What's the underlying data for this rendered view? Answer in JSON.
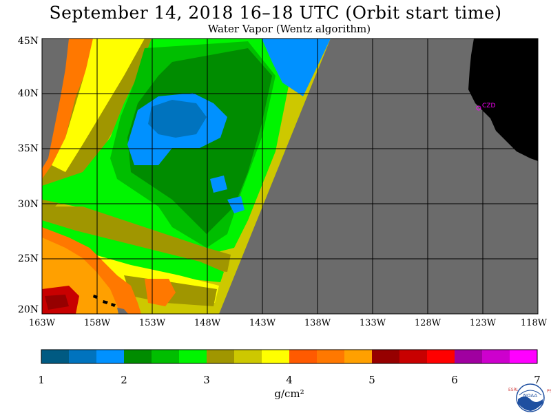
{
  "title": "September 14, 2018  16–18 UTC  (Orbit start time)",
  "subtitle": "Water Vapor (Wentz algorithm)",
  "map": {
    "lat_labels": [
      "45N",
      "40N",
      "35N",
      "30N",
      "25N",
      "20N"
    ],
    "lon_labels": [
      "163W",
      "158W",
      "153W",
      "148W",
      "143W",
      "138W",
      "133W",
      "128W",
      "123W",
      "118W"
    ],
    "station_label": "CZD",
    "colors": {
      "no_data": "#6b6b6b",
      "land": "#000000",
      "grid": "#000000",
      "station": "#ff00ff"
    }
  },
  "colorbar": {
    "ticks": [
      "1",
      "2",
      "3",
      "4",
      "5",
      "6",
      "7"
    ],
    "units": "g/cm²",
    "colors": [
      "#005a82",
      "#0073be",
      "#0091ff",
      "#008c00",
      "#00be00",
      "#00f500",
      "#a09600",
      "#cdc800",
      "#ffff00",
      "#ff5a00",
      "#ff7800",
      "#ffa000",
      "#960000",
      "#c80000",
      "#ff0000",
      "#a000a0",
      "#cd00cd",
      "#ff00ff"
    ]
  },
  "logo": {
    "left_letters": "ESRL",
    "right_letters": "PSD",
    "center": "NOAA"
  }
}
